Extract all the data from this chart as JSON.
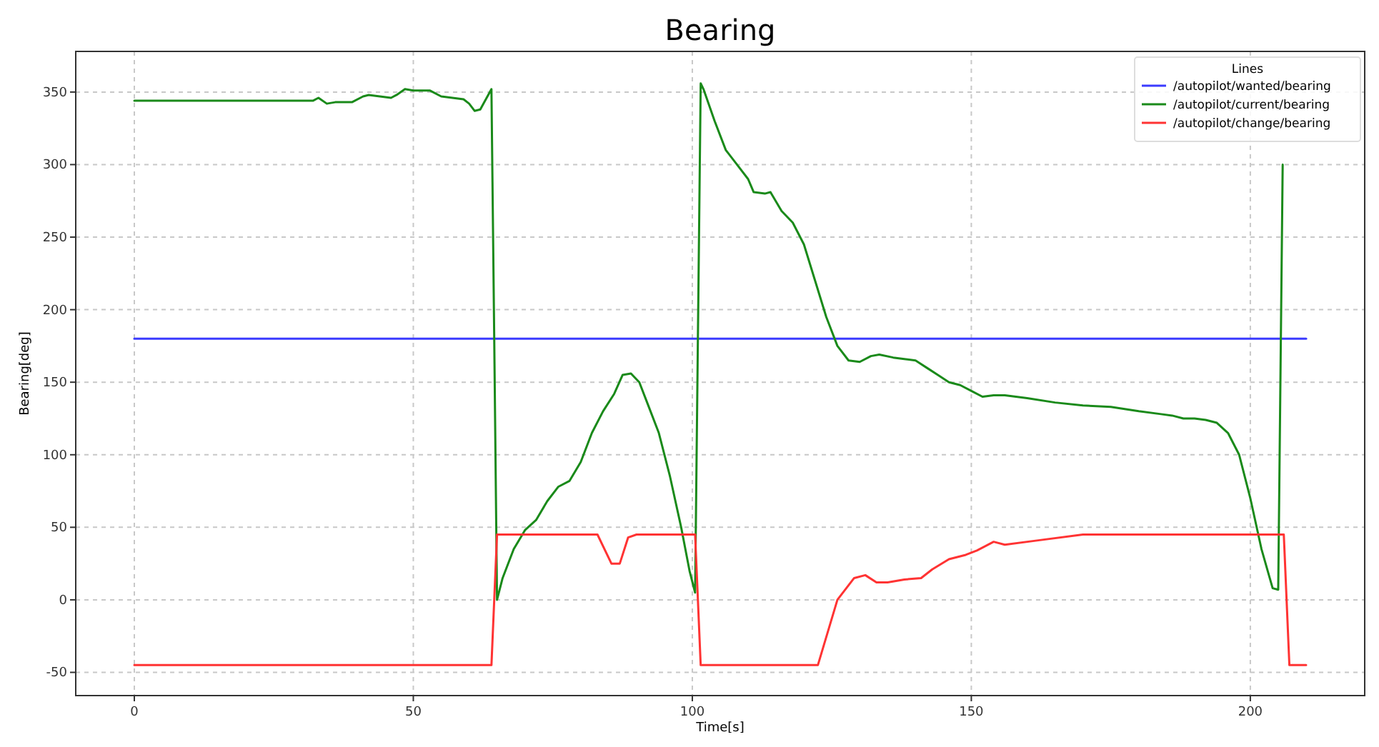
{
  "chart_data": {
    "type": "line",
    "title": "Bearing",
    "xlabel": "Time[s]",
    "ylabel": "Bearing[deg]",
    "legend_title": "Lines",
    "legend": "top right",
    "grid": true,
    "line_style": "solid",
    "xlim": [
      -10.5,
      220.5
    ],
    "ylim": [
      -66,
      378
    ],
    "xticks": [
      0,
      50,
      100,
      150,
      200
    ],
    "yticks": [
      -50,
      0,
      50,
      100,
      150,
      200,
      250,
      300,
      350
    ],
    "series": [
      {
        "name": "/autopilot/wanted/bearing",
        "color": "#3b3bff",
        "x": [
          0,
          210
        ],
        "values": [
          180,
          180
        ]
      },
      {
        "name": "/autopilot/current/bearing",
        "color": "#1a8a1a",
        "x": [
          0,
          32,
          33,
          34.5,
          36,
          39,
          41,
          42,
          44,
          46,
          47,
          48.5,
          50,
          53,
          55,
          57,
          59,
          60,
          61,
          62,
          64,
          64.5,
          65,
          66,
          68,
          70,
          72,
          74,
          76,
          78,
          80,
          82,
          84,
          86,
          87.5,
          89,
          90.5,
          92,
          94,
          96,
          98,
          99.5,
          100.5,
          101.5,
          102,
          104,
          106,
          108,
          110,
          111,
          113,
          114,
          116,
          118,
          120,
          122,
          124,
          126,
          128,
          130,
          132,
          133.5,
          136,
          138,
          140,
          142,
          144,
          146,
          148,
          150,
          152,
          154,
          156,
          160,
          165,
          170,
          175,
          180,
          184,
          186,
          188,
          190,
          192,
          194,
          196,
          198,
          200,
          202,
          204,
          205,
          205.8
        ],
        "values": [
          344,
          344,
          346,
          342,
          343,
          343,
          347,
          348,
          347,
          346,
          348,
          352,
          351,
          351,
          347,
          346,
          345,
          342,
          337,
          338,
          352,
          180,
          0,
          15,
          35,
          48,
          55,
          68,
          78,
          82,
          95,
          115,
          130,
          142,
          155,
          156,
          150,
          135,
          115,
          85,
          50,
          20,
          5,
          356,
          352,
          330,
          310,
          300,
          290,
          281,
          280,
          281,
          268,
          260,
          245,
          220,
          195,
          175,
          165,
          164,
          168,
          169,
          167,
          166,
          165,
          160,
          155,
          150,
          148,
          144,
          140,
          141,
          141,
          139,
          136,
          134,
          133,
          130,
          128,
          127,
          125,
          125,
          124,
          122,
          115,
          100,
          70,
          35,
          8,
          7,
          300
        ]
      },
      {
        "name": "/autopilot/change/bearing",
        "color": "#ff3333",
        "x": [
          0,
          64,
          65,
          83,
          85.5,
          87,
          88.5,
          90,
          100.5,
          101.5,
          122.5,
          126,
          129,
          131,
          133,
          135,
          138,
          141,
          143,
          146,
          149,
          151,
          154,
          156,
          162,
          170,
          206,
          207,
          210
        ],
        "values": [
          -45,
          -45,
          45,
          45,
          25,
          25,
          43,
          45,
          45,
          -45,
          -45,
          0,
          15,
          17,
          12,
          12,
          14,
          15,
          21,
          28,
          31,
          34,
          40,
          38,
          41,
          45,
          45,
          -45,
          -45
        ]
      }
    ]
  }
}
